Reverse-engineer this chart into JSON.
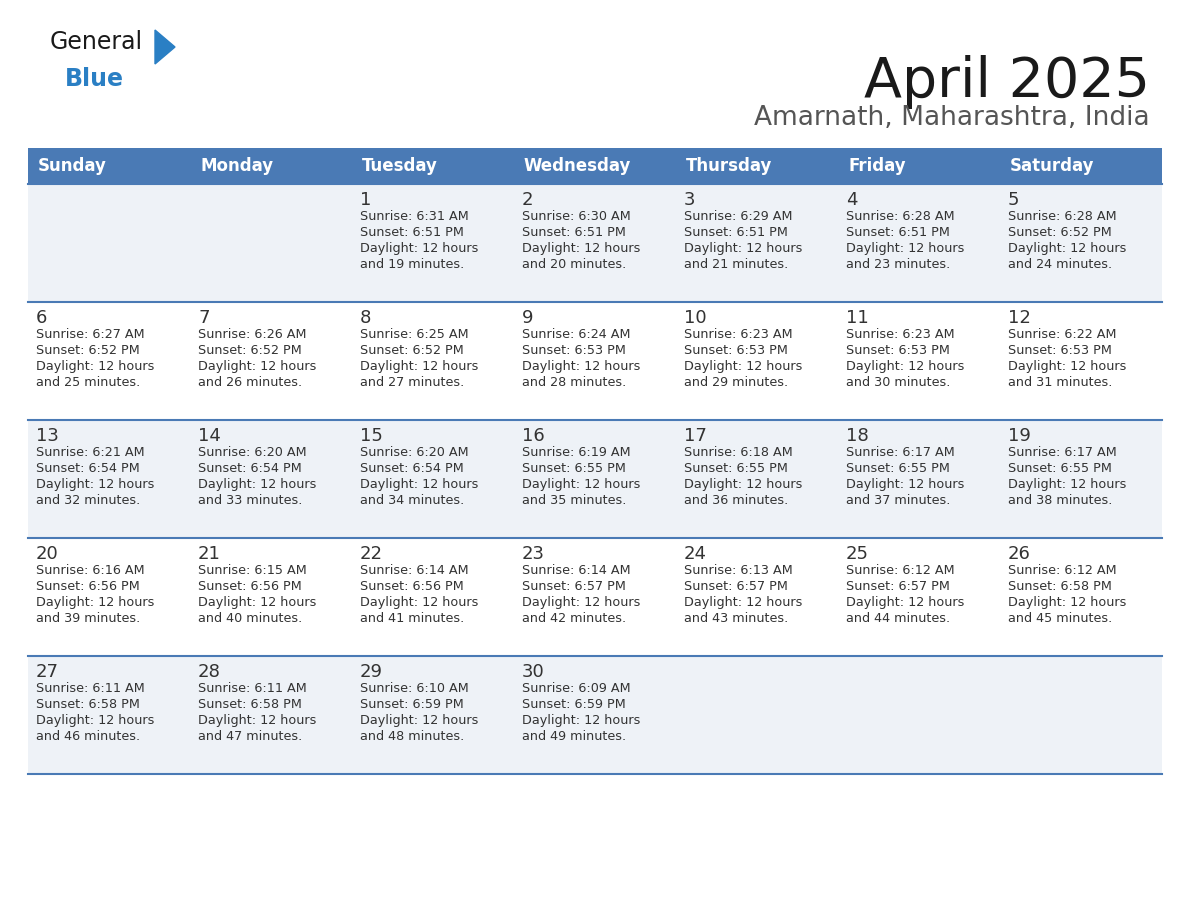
{
  "title": "April 2025",
  "subtitle": "Amarnath, Maharashtra, India",
  "days_of_week": [
    "Sunday",
    "Monday",
    "Tuesday",
    "Wednesday",
    "Thursday",
    "Friday",
    "Saturday"
  ],
  "header_bg": "#4a7ab5",
  "header_text": "#ffffff",
  "row_bg_even": "#eef2f7",
  "row_bg_odd": "#ffffff",
  "divider_color": "#4a7ab5",
  "text_color": "#333333",
  "title_color": "#1a1a1a",
  "subtitle_color": "#555555",
  "logo_general_color": "#1a1a1a",
  "logo_blue_color": "#2a7fc4",
  "calendar_data": [
    [
      {
        "day": null,
        "sunrise": null,
        "sunset": null,
        "daylight_min": null
      },
      {
        "day": null,
        "sunrise": null,
        "sunset": null,
        "daylight_min": null
      },
      {
        "day": 1,
        "sunrise": "6:31 AM",
        "sunset": "6:51 PM",
        "daylight_min": 19
      },
      {
        "day": 2,
        "sunrise": "6:30 AM",
        "sunset": "6:51 PM",
        "daylight_min": 20
      },
      {
        "day": 3,
        "sunrise": "6:29 AM",
        "sunset": "6:51 PM",
        "daylight_min": 21
      },
      {
        "day": 4,
        "sunrise": "6:28 AM",
        "sunset": "6:51 PM",
        "daylight_min": 23
      },
      {
        "day": 5,
        "sunrise": "6:28 AM",
        "sunset": "6:52 PM",
        "daylight_min": 24
      }
    ],
    [
      {
        "day": 6,
        "sunrise": "6:27 AM",
        "sunset": "6:52 PM",
        "daylight_min": 25
      },
      {
        "day": 7,
        "sunrise": "6:26 AM",
        "sunset": "6:52 PM",
        "daylight_min": 26
      },
      {
        "day": 8,
        "sunrise": "6:25 AM",
        "sunset": "6:52 PM",
        "daylight_min": 27
      },
      {
        "day": 9,
        "sunrise": "6:24 AM",
        "sunset": "6:53 PM",
        "daylight_min": 28
      },
      {
        "day": 10,
        "sunrise": "6:23 AM",
        "sunset": "6:53 PM",
        "daylight_min": 29
      },
      {
        "day": 11,
        "sunrise": "6:23 AM",
        "sunset": "6:53 PM",
        "daylight_min": 30
      },
      {
        "day": 12,
        "sunrise": "6:22 AM",
        "sunset": "6:53 PM",
        "daylight_min": 31
      }
    ],
    [
      {
        "day": 13,
        "sunrise": "6:21 AM",
        "sunset": "6:54 PM",
        "daylight_min": 32
      },
      {
        "day": 14,
        "sunrise": "6:20 AM",
        "sunset": "6:54 PM",
        "daylight_min": 33
      },
      {
        "day": 15,
        "sunrise": "6:20 AM",
        "sunset": "6:54 PM",
        "daylight_min": 34
      },
      {
        "day": 16,
        "sunrise": "6:19 AM",
        "sunset": "6:55 PM",
        "daylight_min": 35
      },
      {
        "day": 17,
        "sunrise": "6:18 AM",
        "sunset": "6:55 PM",
        "daylight_min": 36
      },
      {
        "day": 18,
        "sunrise": "6:17 AM",
        "sunset": "6:55 PM",
        "daylight_min": 37
      },
      {
        "day": 19,
        "sunrise": "6:17 AM",
        "sunset": "6:55 PM",
        "daylight_min": 38
      }
    ],
    [
      {
        "day": 20,
        "sunrise": "6:16 AM",
        "sunset": "6:56 PM",
        "daylight_min": 39
      },
      {
        "day": 21,
        "sunrise": "6:15 AM",
        "sunset": "6:56 PM",
        "daylight_min": 40
      },
      {
        "day": 22,
        "sunrise": "6:14 AM",
        "sunset": "6:56 PM",
        "daylight_min": 41
      },
      {
        "day": 23,
        "sunrise": "6:14 AM",
        "sunset": "6:57 PM",
        "daylight_min": 42
      },
      {
        "day": 24,
        "sunrise": "6:13 AM",
        "sunset": "6:57 PM",
        "daylight_min": 43
      },
      {
        "day": 25,
        "sunrise": "6:12 AM",
        "sunset": "6:57 PM",
        "daylight_min": 44
      },
      {
        "day": 26,
        "sunrise": "6:12 AM",
        "sunset": "6:58 PM",
        "daylight_min": 45
      }
    ],
    [
      {
        "day": 27,
        "sunrise": "6:11 AM",
        "sunset": "6:58 PM",
        "daylight_min": 46
      },
      {
        "day": 28,
        "sunrise": "6:11 AM",
        "sunset": "6:58 PM",
        "daylight_min": 47
      },
      {
        "day": 29,
        "sunrise": "6:10 AM",
        "sunset": "6:59 PM",
        "daylight_min": 48
      },
      {
        "day": 30,
        "sunrise": "6:09 AM",
        "sunset": "6:59 PM",
        "daylight_min": 49
      },
      {
        "day": null,
        "sunrise": null,
        "sunset": null,
        "daylight_min": null
      },
      {
        "day": null,
        "sunrise": null,
        "sunset": null,
        "daylight_min": null
      },
      {
        "day": null,
        "sunrise": null,
        "sunset": null,
        "daylight_min": null
      }
    ]
  ]
}
